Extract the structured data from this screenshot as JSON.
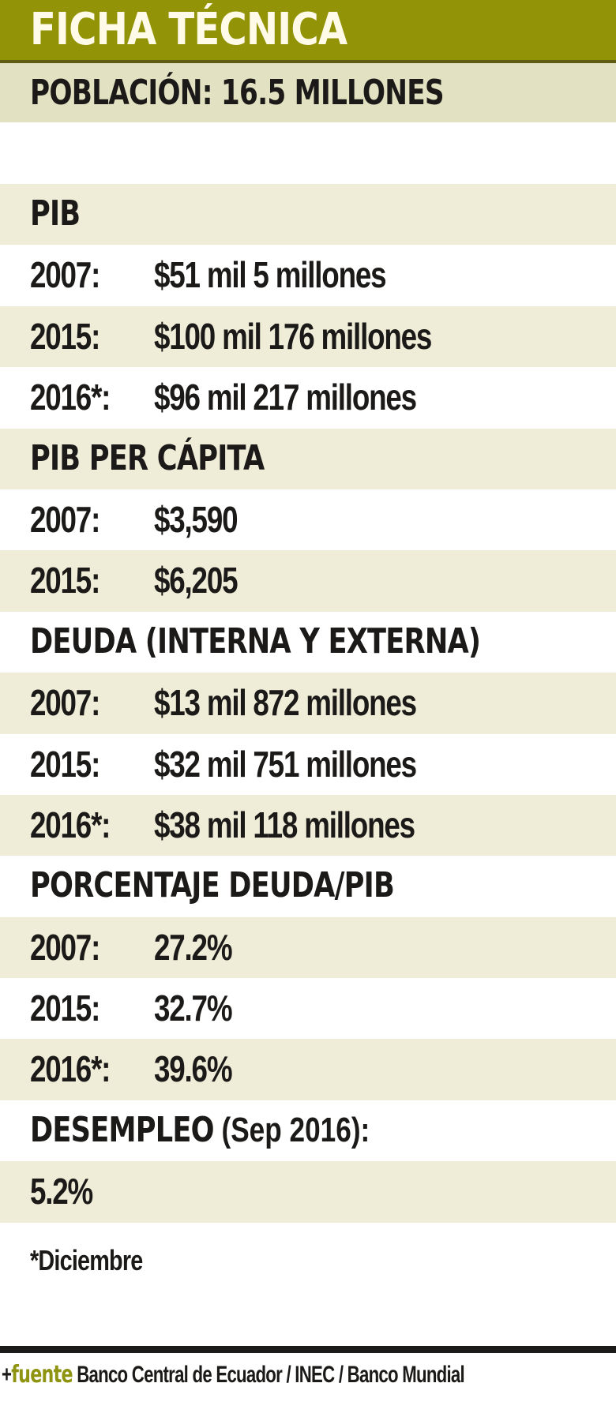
{
  "header": {
    "title": "FICHA TÉCNICA",
    "accent_color": "#939307"
  },
  "population": {
    "text": "POBLACIÓN: 16.5 MILLONES"
  },
  "sections": {
    "pib": {
      "title": "PIB",
      "rows": [
        {
          "year": "2007:",
          "value": "$51 mil 5 millones"
        },
        {
          "year": "2015:",
          "value": "$100 mil 176 millones"
        },
        {
          "year": "2016*:",
          "value": "$96 mil 217 millones"
        }
      ]
    },
    "pib_per_capita": {
      "title": "PIB PER CÁPITA",
      "rows": [
        {
          "year": "2007:",
          "value": "$3,590"
        },
        {
          "year": "2015:",
          "value": "$6,205"
        }
      ]
    },
    "deuda": {
      "title": "DEUDA (INTERNA Y EXTERNA)",
      "rows": [
        {
          "year": "2007:",
          "value": "$13 mil 872 millones"
        },
        {
          "year": "2015:",
          "value": "$32 mil 751 millones"
        },
        {
          "year": "2016*:",
          "value": "$38 mil 118 millones"
        }
      ]
    },
    "deuda_pib": {
      "title": "PORCENTAJE DEUDA/PIB",
      "rows": [
        {
          "year": "2007:",
          "value": "27.2%"
        },
        {
          "year": "2015:",
          "value": "32.7%"
        },
        {
          "year": "2016*:",
          "value": "39.6%"
        }
      ]
    },
    "desempleo": {
      "title": "DESEMPLEO",
      "subtitle": " (Sep 2016):",
      "value": "5.2%"
    }
  },
  "footnote": "*Diciembre",
  "source": {
    "bullet": "+",
    "label": "fuente",
    "text": " Banco Central de Ecuador / INEC / Banco Mundial",
    "label_color": "#8f9410"
  }
}
